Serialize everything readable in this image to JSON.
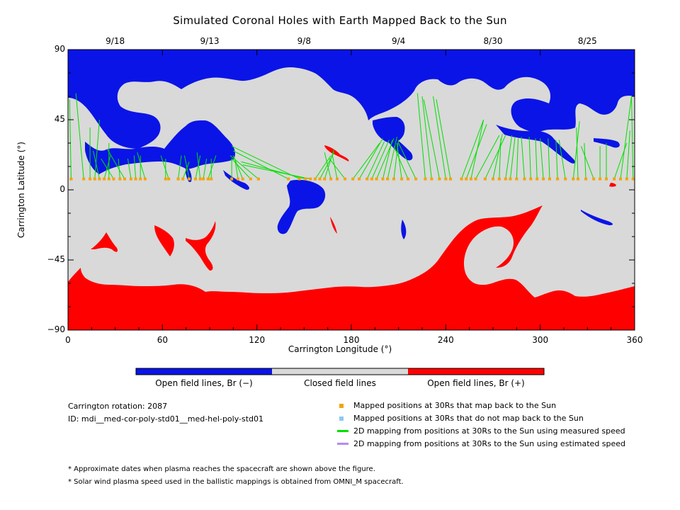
{
  "chart_data": {
    "type": "map",
    "title": "Simulated Coronal Holes with Earth Mapped Back to the Sun",
    "xlabel": "Carrington Longitude (°)",
    "ylabel": "Carrington Latitude (°)",
    "xlim": [
      0,
      360
    ],
    "ylim": [
      -90,
      90
    ],
    "x_ticks": [
      "0",
      "60",
      "120",
      "180",
      "240",
      "300",
      "360"
    ],
    "y_ticks": [
      "90",
      "45",
      "0",
      "-45",
      "-90"
    ],
    "top_date_ticks": [
      {
        "label": "9/18",
        "longitude": 30
      },
      {
        "label": "9/13",
        "longitude": 90
      },
      {
        "label": "9/8",
        "longitude": 150
      },
      {
        "label": "9/4",
        "longitude": 210
      },
      {
        "label": "8/30",
        "longitude": 270
      },
      {
        "label": "8/25",
        "longitude": 330
      }
    ],
    "colors": {
      "open_negative": "#0a14e6",
      "closed": "#d9d9d9",
      "open_positive": "#ff0000",
      "mapped_back": "#f5a300",
      "not_mapped": "#8fc8f0",
      "measured_speed": "#00e000",
      "estimated_speed": "#b48cf0"
    },
    "colorbar": {
      "labels": [
        "Open field lines, Br (−)",
        "Closed field lines",
        "Open field lines, Br (+)"
      ]
    },
    "mapped_points": {
      "latitude": 7,
      "longitudes": [
        2,
        10,
        14,
        17,
        20,
        23,
        26,
        29,
        33,
        36,
        40,
        43,
        46,
        49,
        62,
        64,
        70,
        73,
        77,
        81,
        84,
        86,
        89,
        91,
        104,
        108,
        111,
        116,
        121,
        140,
        147,
        151,
        154,
        157,
        160,
        163,
        167,
        171,
        176,
        181,
        185,
        190,
        193,
        196,
        200,
        203,
        207,
        212,
        216,
        221,
        227,
        231,
        236,
        240,
        243,
        250,
        253,
        256,
        259,
        265,
        270,
        274,
        278,
        281,
        285,
        290,
        294,
        298,
        302,
        306,
        311,
        316,
        321,
        324,
        329,
        334,
        338,
        342,
        347,
        351,
        355,
        359
      ]
    },
    "mappings": [
      {
        "from": 2,
        "to": [
          1,
          58
        ]
      },
      {
        "from": 10,
        "to": [
          5,
          62
        ]
      },
      {
        "from": 14,
        "to": [
          14,
          40
        ]
      },
      {
        "from": 17,
        "to": [
          20,
          45
        ]
      },
      {
        "from": 20,
        "to": [
          16,
          25
        ]
      },
      {
        "from": 23,
        "to": [
          27,
          22
        ]
      },
      {
        "from": 26,
        "to": [
          26,
          30
        ]
      },
      {
        "from": 29,
        "to": [
          21,
          20
        ]
      },
      {
        "from": 33,
        "to": [
          32,
          20
        ]
      },
      {
        "from": 36,
        "to": [
          25,
          26
        ]
      },
      {
        "from": 40,
        "to": [
          38,
          20
        ]
      },
      {
        "from": 43,
        "to": [
          42,
          22
        ]
      },
      {
        "from": 46,
        "to": [
          46,
          22
        ]
      },
      {
        "from": 49,
        "to": [
          44,
          24
        ]
      },
      {
        "from": 62,
        "to": [
          62,
          20
        ]
      },
      {
        "from": 64,
        "to": [
          59,
          22
        ]
      },
      {
        "from": 70,
        "to": [
          72,
          22
        ]
      },
      {
        "from": 73,
        "to": [
          77,
          18
        ]
      },
      {
        "from": 77,
        "to": [
          74,
          22
        ]
      },
      {
        "from": 81,
        "to": [
          84,
          22
        ]
      },
      {
        "from": 84,
        "to": [
          82,
          24
        ]
      },
      {
        "from": 86,
        "to": [
          88,
          20
        ]
      },
      {
        "from": 89,
        "to": [
          94,
          22
        ]
      },
      {
        "from": 91,
        "to": [
          91,
          20
        ]
      },
      {
        "from": 104,
        "to": [
          104,
          20
        ]
      },
      {
        "from": 108,
        "to": [
          106,
          20
        ]
      },
      {
        "from": 111,
        "to": [
          105,
          22
        ]
      },
      {
        "from": 116,
        "to": [
          104,
          20
        ]
      },
      {
        "from": 121,
        "to": [
          103,
          22
        ]
      },
      {
        "from": 140,
        "to": [
          105,
          25
        ]
      },
      {
        "from": 147,
        "to": [
          104,
          28
        ]
      },
      {
        "from": 151,
        "to": [
          110,
          18
        ]
      },
      {
        "from": 154,
        "to": [
          111,
          16
        ]
      },
      {
        "from": 157,
        "to": [
          167,
          22
        ]
      },
      {
        "from": 160,
        "to": [
          169,
          24
        ]
      },
      {
        "from": 163,
        "to": [
          169,
          26
        ]
      },
      {
        "from": 167,
        "to": [
          163,
          24
        ]
      },
      {
        "from": 171,
        "to": [
          168,
          22
        ]
      },
      {
        "from": 176,
        "to": [
          166,
          20
        ]
      },
      {
        "from": 181,
        "to": [
          198,
          30
        ]
      },
      {
        "from": 185,
        "to": [
          200,
          33
        ]
      },
      {
        "from": 190,
        "to": [
          201,
          31
        ]
      },
      {
        "from": 193,
        "to": [
          204,
          32
        ]
      },
      {
        "from": 196,
        "to": [
          207,
          33
        ]
      },
      {
        "from": 200,
        "to": [
          206,
          32
        ]
      },
      {
        "from": 203,
        "to": [
          209,
          34
        ]
      },
      {
        "from": 207,
        "to": [
          210,
          32
        ]
      },
      {
        "from": 212,
        "to": [
          209,
          30
        ]
      },
      {
        "from": 216,
        "to": [
          207,
          28
        ]
      },
      {
        "from": 221,
        "to": [
          210,
          30
        ]
      },
      {
        "from": 227,
        "to": [
          222,
          62
        ]
      },
      {
        "from": 231,
        "to": [
          225,
          60
        ]
      },
      {
        "from": 236,
        "to": [
          226,
          58
        ]
      },
      {
        "from": 240,
        "to": [
          232,
          60
        ]
      },
      {
        "from": 243,
        "to": [
          234,
          58
        ]
      },
      {
        "from": 250,
        "to": [
          264,
          45
        ]
      },
      {
        "from": 253,
        "to": [
          266,
          42
        ]
      },
      {
        "from": 256,
        "to": [
          264,
          45
        ]
      },
      {
        "from": 259,
        "to": [
          274,
          35
        ]
      },
      {
        "from": 265,
        "to": [
          278,
          35
        ]
      },
      {
        "from": 270,
        "to": [
          276,
          36
        ]
      },
      {
        "from": 274,
        "to": [
          275,
          33
        ]
      },
      {
        "from": 278,
        "to": [
          282,
          35
        ]
      },
      {
        "from": 281,
        "to": [
          284,
          34
        ]
      },
      {
        "from": 285,
        "to": [
          286,
          33
        ]
      },
      {
        "from": 290,
        "to": [
          288,
          34
        ]
      },
      {
        "from": 294,
        "to": [
          293,
          34
        ]
      },
      {
        "from": 298,
        "to": [
          297,
          33
        ]
      },
      {
        "from": 302,
        "to": [
          300,
          33
        ]
      },
      {
        "from": 306,
        "to": [
          305,
          33
        ]
      },
      {
        "from": 311,
        "to": [
          310,
          32
        ]
      },
      {
        "from": 316,
        "to": [
          312,
          32
        ]
      },
      {
        "from": 321,
        "to": [
          325,
          44
        ]
      },
      {
        "from": 324,
        "to": [
          323,
          40
        ]
      },
      {
        "from": 329,
        "to": [
          328,
          30
        ]
      },
      {
        "from": 334,
        "to": [
          326,
          28
        ]
      },
      {
        "from": 338,
        "to": [
          338,
          28
        ]
      },
      {
        "from": 342,
        "to": [
          342,
          30
        ]
      },
      {
        "from": 347,
        "to": [
          355,
          30
        ]
      },
      {
        "from": 351,
        "to": [
          358,
          60
        ]
      },
      {
        "from": 355,
        "to": [
          357,
          38
        ]
      },
      {
        "from": 359,
        "to": [
          358,
          60
        ]
      }
    ]
  },
  "info": {
    "carrington_rotation": "Carrington rotation: 2087",
    "id": "ID: mdi__med-cor-poly-std01__med-hel-poly-std01"
  },
  "legend": [
    {
      "kind": "square",
      "color": "#f5a300",
      "label": "Mapped positions at 30Rs that map back to the Sun"
    },
    {
      "kind": "square",
      "color": "#8fc8f0",
      "label": "Mapped positions at 30Rs that do not map back to the Sun"
    },
    {
      "kind": "line",
      "color": "#00e000",
      "label": "2D mapping from positions at 30Rs to the Sun using measured speed"
    },
    {
      "kind": "line",
      "color": "#b48cf0",
      "label": "2D mapping from positions at 30Rs to the Sun using estimated speed"
    }
  ],
  "notes": [
    "* Approximate dates when plasma reaches the spacecraft are shown above the figure.",
    "* Solar wind plasma speed used in the ballistic mappings is obtained from OMNI_M spacecraft."
  ]
}
